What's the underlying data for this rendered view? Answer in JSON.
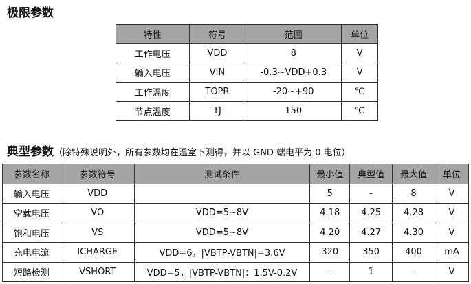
{
  "abs": {
    "title": "极限参数",
    "headers": [
      "特性",
      "符号",
      "范围",
      "单位"
    ],
    "rows": [
      [
        "工作电压",
        "VDD",
        "8",
        "V"
      ],
      [
        "输入电压",
        "VIN",
        "-0.3~VDD+0.3",
        "V"
      ],
      [
        "工作温度",
        "TOPR",
        "-20~+90",
        "℃"
      ],
      [
        "节点温度",
        "TJ",
        "150",
        "℃"
      ]
    ]
  },
  "typ": {
    "title": "典型参数",
    "note": "（除特殊说明外，所有参数均在温室下测得，并以 GND 端电平为 0 电位）",
    "headers": [
      "参数名称",
      "参数符号",
      "测试条件",
      "最小值",
      "典型值",
      "最大值",
      "单位"
    ],
    "rows": [
      [
        "输入电压",
        "VDD",
        "",
        "5",
        "-",
        "8",
        "V"
      ],
      [
        "空载电压",
        "VO",
        "VDD=5~8V",
        "4.18",
        "4.25",
        "4.28",
        "V"
      ],
      [
        "饱和电压",
        "VS",
        "VDD=5~8V",
        "4.20",
        "4.27",
        "4.30",
        "V"
      ],
      [
        "充电电流",
        "ICHARGE",
        "VDD=6，|VBTP-VBTN|=3.6V",
        "320",
        "350",
        "400",
        "mA"
      ],
      [
        "短路检测",
        "VSHORT",
        "VDD=5，|VBTP-VBTN|：1.5V-0.2V",
        "-",
        "1",
        "-",
        "V"
      ]
    ]
  }
}
